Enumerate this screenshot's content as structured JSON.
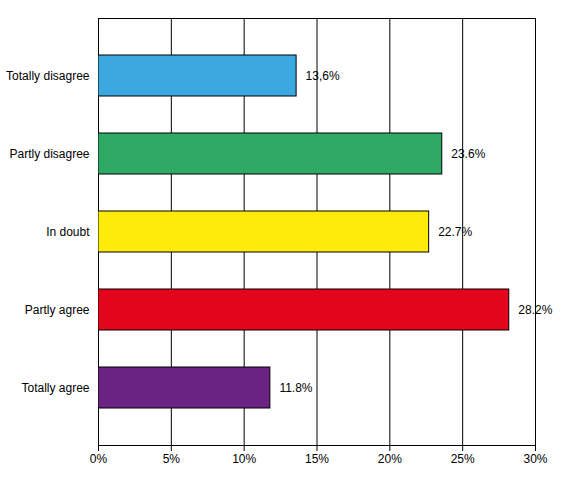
{
  "chart_data": {
    "type": "bar",
    "orientation": "horizontal",
    "categories": [
      "Totally disagree",
      "Partly disagree",
      "In doubt",
      "Partly agree",
      "Totally agree"
    ],
    "values": [
      13.6,
      23.6,
      22.7,
      28.2,
      11.8
    ],
    "value_labels": [
      "13,6%",
      "23.6%",
      "22.7%",
      "28.2%",
      "11.8%"
    ],
    "colors": [
      "#3ba9e0",
      "#2eaa66",
      "#ffeb0a",
      "#e3051b",
      "#6a2383"
    ],
    "xlim": [
      0,
      30
    ],
    "xticks": [
      {
        "value": 0,
        "label": "0%"
      },
      {
        "value": 5,
        "label": "5%"
      },
      {
        "value": 10,
        "label": "10%"
      },
      {
        "value": 15,
        "label": "15%"
      },
      {
        "value": 20,
        "label": "20%"
      },
      {
        "value": 25,
        "label": "25%"
      },
      {
        "value": 30,
        "label": "30%"
      }
    ],
    "grid": true,
    "data_labels": true
  }
}
